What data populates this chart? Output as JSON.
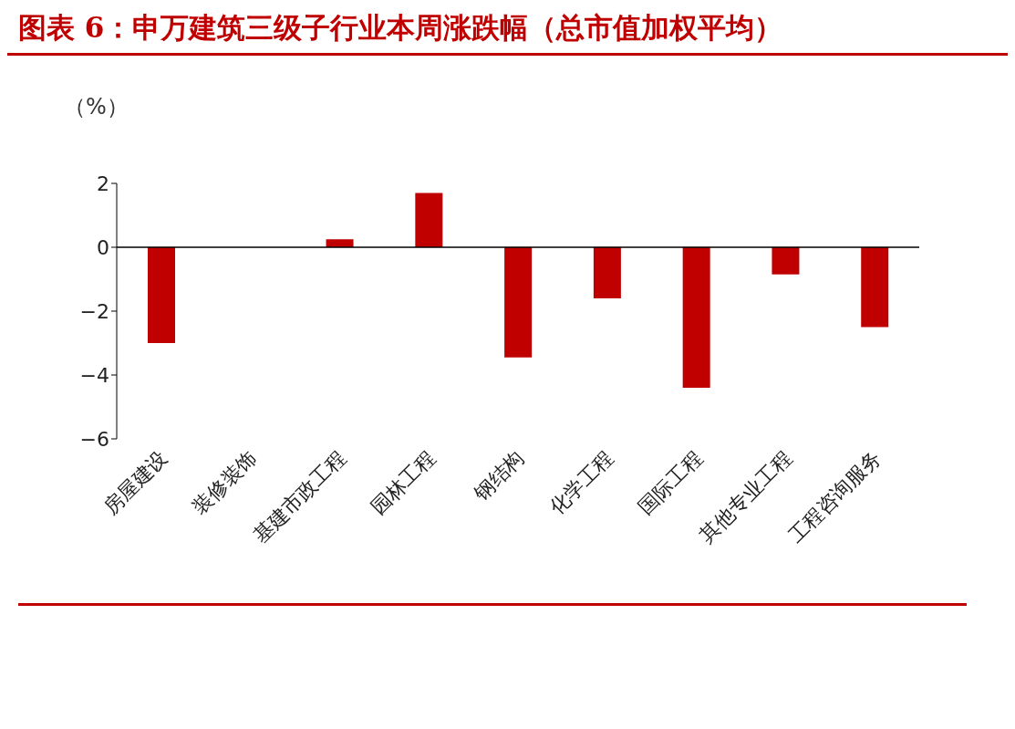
{
  "chart_data": {
    "type": "bar",
    "title": "图表 6：申万建筑三级子行业本周涨跌幅（总市值加权平均）",
    "ylabel": "（%）",
    "categories": [
      "房屋建设",
      "装修装饰",
      "基建市政工程",
      "园林工程",
      "钢结构",
      "化学工程",
      "国际工程",
      "其他专业工程",
      "工程咨询服务"
    ],
    "values": [
      -3.0,
      0.0,
      0.25,
      1.7,
      -3.45,
      -1.6,
      -4.4,
      -0.85,
      -2.5
    ],
    "color": "#c00000",
    "ylim": [
      -6,
      2
    ],
    "yticks": [
      {
        "value": -6,
        "label": "−6"
      },
      {
        "value": -4,
        "label": "−4"
      },
      {
        "value": -2,
        "label": "−2"
      },
      0,
      2
    ],
    "legend": false
  }
}
